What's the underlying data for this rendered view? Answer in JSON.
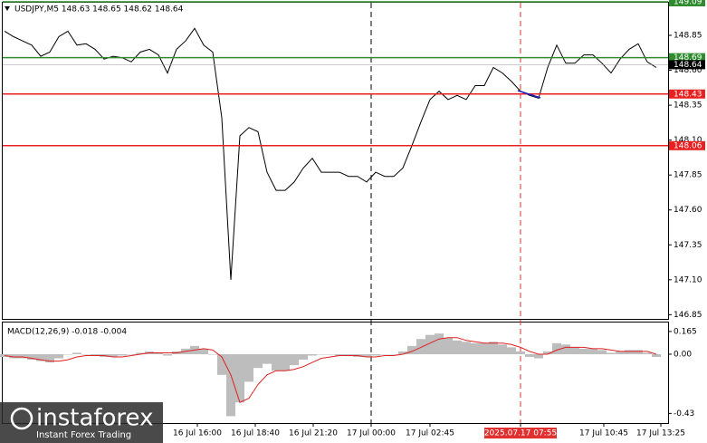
{
  "chart_data": [
    {
      "type": "line",
      "title": "USDJPY,M5  148.63 148.65 148.62 148.64",
      "values": [
        148.88,
        148.84,
        148.81,
        148.78,
        148.7,
        148.73,
        148.84,
        148.88,
        148.78,
        148.79,
        148.75,
        148.68,
        148.7,
        148.69,
        148.66,
        148.73,
        148.75,
        148.71,
        148.58,
        148.75,
        148.81,
        148.9,
        148.78,
        148.73,
        148.26,
        147.1,
        148.13,
        148.19,
        148.16,
        147.87,
        147.74,
        147.74,
        147.8,
        147.9,
        147.97,
        147.87,
        147.87,
        147.87,
        147.84,
        147.84,
        147.8,
        147.87,
        147.84,
        147.84,
        147.9,
        148.06,
        148.23,
        148.39,
        148.45,
        148.39,
        148.42,
        148.39,
        148.49,
        148.49,
        148.62,
        148.58,
        148.52,
        148.45,
        148.42,
        148.4,
        148.62,
        148.78,
        148.65,
        148.65,
        148.71,
        148.71,
        148.65,
        148.58,
        148.68,
        148.75,
        148.79,
        148.66,
        148.62
      ],
      "color": "#000000",
      "xlim": [
        -0.2,
        73.3
      ],
      "xticks": [
        {
          "value": 21.3,
          "label": "16 Jul 16:00"
        },
        {
          "value": 27.7,
          "label": "16 Jul 18:40"
        },
        {
          "value": 34.1,
          "label": "16 Jul 21:20"
        },
        {
          "value": 40.5,
          "label": "17 Jul 00:00"
        },
        {
          "value": 47,
          "label": "17 Jul 02:45"
        },
        {
          "value": 57,
          "label": "2025.07.17 07:55"
        },
        {
          "value": 66.2,
          "label": "17 Jul 10:45"
        },
        {
          "value": 72.5,
          "label": "17 Jul 13:25"
        }
      ],
      "ylim": [
        146.82,
        149.09
      ],
      "yticks": [
        148.85,
        {
          "value": 148.6,
          "label": "148.60"
        },
        148.35,
        {
          "value": 148.1,
          "label": "148.10"
        },
        147.85,
        {
          "value": 147.6,
          "label": "147.60"
        },
        147.35,
        {
          "value": 147.1,
          "label": "147.10"
        },
        146.85
      ],
      "levels": [
        {
          "value": 149.09,
          "color": "#2e8b2e"
        },
        {
          "value": 148.69,
          "color": "#2e8b2e"
        },
        {
          "value": 148.43,
          "color": "#e82020"
        },
        {
          "value": 148.06,
          "color": "#e82020"
        }
      ],
      "last_price": 148.64,
      "vlines": [
        {
          "value": 40.5,
          "color": "#000000"
        },
        {
          "value": 57,
          "color": "#e03030"
        }
      ]
    },
    {
      "type": "macd",
      "title": "MACD(12,26,9) -0.018 -0.004",
      "histogram": [
        -0.02,
        -0.03,
        -0.03,
        -0.04,
        -0.05,
        -0.06,
        -0.03,
        0.0,
        0.01,
        0.0,
        -0.01,
        -0.02,
        -0.02,
        -0.01,
        0.0,
        0.01,
        0.02,
        0.01,
        -0.01,
        0.02,
        0.04,
        0.06,
        0.04,
        0.0,
        -0.15,
        -0.45,
        -0.35,
        -0.2,
        -0.1,
        -0.07,
        -0.12,
        -0.12,
        -0.08,
        -0.04,
        -0.01,
        0.0,
        0.0,
        -0.01,
        -0.01,
        -0.02,
        -0.02,
        -0.01,
        0.0,
        0.0,
        0.02,
        0.06,
        0.11,
        0.14,
        0.15,
        0.12,
        0.1,
        0.09,
        0.08,
        0.08,
        0.09,
        0.07,
        0.05,
        0.02,
        -0.02,
        -0.03,
        0.02,
        0.08,
        0.07,
        0.05,
        0.04,
        0.04,
        0.03,
        0.01,
        0.02,
        0.03,
        0.03,
        0.01,
        -0.02
      ],
      "histogram_color": "#bdbdbd",
      "signal": [
        -0.01,
        -0.02,
        -0.02,
        -0.03,
        -0.04,
        -0.05,
        -0.05,
        -0.04,
        -0.02,
        -0.01,
        -0.01,
        -0.01,
        -0.02,
        -0.02,
        -0.01,
        0.0,
        0.01,
        0.01,
        0.01,
        0.01,
        0.02,
        0.03,
        0.04,
        0.03,
        -0.02,
        -0.15,
        -0.35,
        -0.32,
        -0.22,
        -0.15,
        -0.12,
        -0.12,
        -0.11,
        -0.09,
        -0.06,
        -0.03,
        -0.02,
        -0.01,
        -0.01,
        -0.01,
        -0.02,
        -0.02,
        -0.01,
        -0.01,
        0.0,
        0.02,
        0.05,
        0.08,
        0.11,
        0.12,
        0.12,
        0.1,
        0.09,
        0.08,
        0.08,
        0.08,
        0.07,
        0.05,
        0.02,
        0.0,
        0.0,
        0.03,
        0.05,
        0.05,
        0.05,
        0.04,
        0.04,
        0.03,
        0.02,
        0.02,
        0.02,
        0.02,
        0.0
      ],
      "signal_color": "#e02020",
      "ylim": [
        -0.5,
        0.23
      ],
      "yticks": [
        0.165,
        {
          "value": 0,
          "label": "0.00"
        },
        -0.43
      ]
    }
  ],
  "watermark": {
    "brand": "instaforex",
    "tagline": "Instant Forex Trading"
  }
}
